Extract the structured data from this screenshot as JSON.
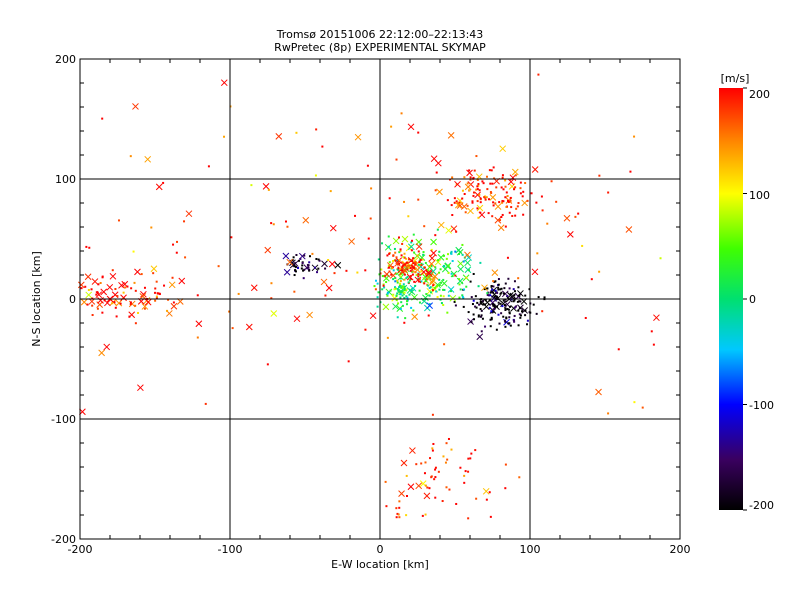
{
  "chart_data": {
    "type": "scatter",
    "title": "Tromsø 20151006 22:12:00–22:13:43",
    "subtitle": "RwPretec (8p) EXPERIMENTAL SKYMAP",
    "xlabel": "E-W location [km]",
    "ylabel": "N-S location [km]",
    "xlim": [
      -200,
      200
    ],
    "ylim": [
      -200,
      200
    ],
    "x_ticks": [
      "-200",
      "-100",
      "0",
      "100",
      "200"
    ],
    "y_ticks": [
      "-200",
      "-100",
      "0",
      "100",
      "200"
    ],
    "grid": true,
    "colorbar": {
      "label": "[m/s]",
      "range": [
        -200,
        200
      ],
      "ticks": [
        "-200",
        "-100",
        "0",
        "100",
        "200"
      ],
      "colormap": "rainbow (black-purple-blue-cyan-green-yellow-red)"
    },
    "marker_types": [
      "x",
      "dot"
    ],
    "clusters": [
      {
        "x": 80,
        "y": -5,
        "spread_x": 12,
        "spread_y": 10,
        "velocity": -200,
        "n_dots": 160,
        "n_x": 25
      },
      {
        "x": 30,
        "y": 20,
        "spread_x": 18,
        "spread_y": 15,
        "velocity": 30,
        "n_dots": 140,
        "n_x": 50
      },
      {
        "x": 20,
        "y": 25,
        "spread_x": 10,
        "spread_y": 8,
        "velocity": 190,
        "n_dots": 90,
        "n_x": 25
      },
      {
        "x": 15,
        "y": 5,
        "spread_x": 8,
        "spread_y": 6,
        "velocity": 20,
        "n_dots": 60,
        "n_x": 10
      },
      {
        "x": 75,
        "y": 85,
        "spread_x": 15,
        "spread_y": 12,
        "velocity": 190,
        "n_dots": 110,
        "n_x": 20
      },
      {
        "x": -170,
        "y": 5,
        "spread_x": 22,
        "spread_y": 10,
        "velocity": 195,
        "n_dots": 60,
        "n_x": 40
      },
      {
        "x": -50,
        "y": 28,
        "spread_x": 8,
        "spread_y": 5,
        "velocity": -185,
        "n_dots": 35,
        "n_x": 10
      },
      {
        "x": 40,
        "y": -150,
        "spread_x": 20,
        "spread_y": 18,
        "velocity": 190,
        "n_dots": 60,
        "n_x": 8
      },
      {
        "x": 0,
        "y": 50,
        "spread_x": 120,
        "spread_y": 70,
        "velocity": 180,
        "n_dots": 120,
        "n_x": 60
      }
    ]
  }
}
